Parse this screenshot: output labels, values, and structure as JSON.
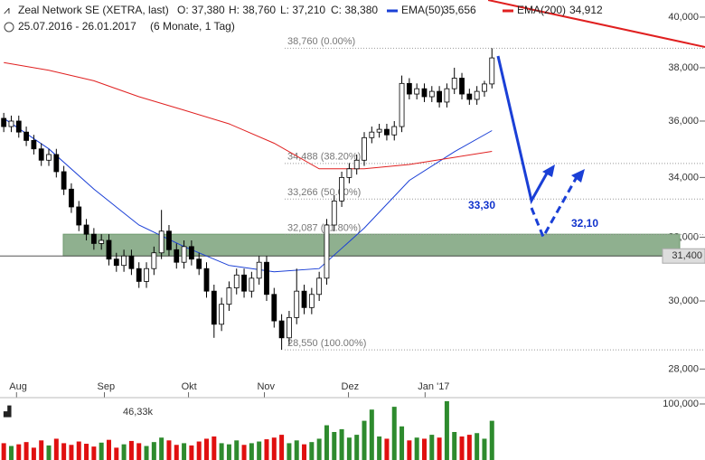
{
  "chart_data": {
    "type": "candlestick",
    "title": "Zeal Network SE (XETRA, last)",
    "header_values": [
      "O: 37,380",
      "H: 38,760",
      "L: 37,210",
      "C: 38,380"
    ],
    "subtitle": "25.07.2016 - 26.01.2017",
    "period": "(6 Monate, 1 Tag)",
    "log_scale": true,
    "xlim": [
      -0.5,
      90
    ],
    "xticks": [
      {
        "value": 1.7,
        "label": "Aug"
      },
      {
        "value": 13.4,
        "label": "Sep"
      },
      {
        "value": 24.6,
        "label": "Okt"
      },
      {
        "value": 34.7,
        "label": "Nov"
      },
      {
        "value": 45.9,
        "label": "Dez"
      },
      {
        "value": 56.1,
        "label": "Jan '17"
      }
    ],
    "ylim": [
      27400,
      40700
    ],
    "yticks": [
      {
        "value": 28000,
        "label": "28,000"
      },
      {
        "value": 30000,
        "label": "30,000"
      },
      {
        "value": 32000,
        "label": "32,000"
      },
      {
        "value": 34000,
        "label": "34,000"
      },
      {
        "value": 36000,
        "label": "36,000"
      },
      {
        "value": 38000,
        "label": "38,000"
      },
      {
        "value": 40000,
        "label": "40,000"
      }
    ],
    "x": [
      0,
      1,
      2,
      3,
      4,
      5,
      6,
      7,
      8,
      9,
      10,
      11,
      12,
      13,
      14,
      15,
      16,
      17,
      18,
      19,
      20,
      21,
      22,
      23,
      24,
      25,
      26,
      27,
      28,
      29,
      30,
      31,
      32,
      33,
      34,
      35,
      36,
      37,
      38,
      39,
      40,
      41,
      42,
      43,
      44,
      45,
      46,
      47,
      48,
      49,
      50,
      51,
      52,
      53,
      54,
      55,
      56,
      57,
      58,
      59,
      60,
      61,
      62,
      63,
      64,
      65
    ],
    "open": [
      36100,
      35800,
      36000,
      35600,
      35300,
      35000,
      34600,
      34800,
      34200,
      33600,
      33000,
      32400,
      32100,
      31800,
      31900,
      31300,
      31100,
      31400,
      31000,
      30600,
      31000,
      31500,
      32200,
      31600,
      31200,
      31700,
      31300,
      31000,
      30300,
      29300,
      29900,
      30400,
      30800,
      30300,
      30700,
      31200,
      30200,
      29400,
      28900,
      29500,
      30300,
      29800,
      30200,
      30700,
      32400,
      33200,
      34000,
      34300,
      34600,
      35400,
      35600,
      35700,
      35500,
      35800,
      37400,
      37000,
      37200,
      36900,
      37100,
      36700,
      37200,
      37600,
      37000,
      36800,
      37100,
      37380
    ],
    "high": [
      36300,
      36200,
      36200,
      35800,
      35500,
      35200,
      35000,
      35000,
      34400,
      33800,
      33200,
      32600,
      32300,
      32100,
      32100,
      31500,
      31600,
      31600,
      31200,
      31200,
      31700,
      32900,
      32400,
      31800,
      31900,
      31900,
      31500,
      31200,
      30500,
      30100,
      30600,
      31000,
      31000,
      30900,
      31400,
      31400,
      30400,
      29600,
      29700,
      31000,
      30500,
      30400,
      30900,
      32600,
      33400,
      34200,
      34500,
      34800,
      35600,
      35800,
      35900,
      35900,
      36000,
      37700,
      37600,
      37400,
      37400,
      37300,
      37300,
      37400,
      38000,
      37800,
      37200,
      37300,
      37500,
      38760
    ],
    "low": [
      35600,
      35600,
      35400,
      35100,
      34800,
      34400,
      34400,
      34000,
      33400,
      32800,
      32200,
      31900,
      31600,
      31600,
      31100,
      30900,
      30900,
      30800,
      30400,
      30400,
      30800,
      31300,
      31400,
      31000,
      31000,
      31100,
      30800,
      30100,
      28900,
      29100,
      29700,
      30200,
      30100,
      30100,
      30500,
      30000,
      29200,
      28550,
      28700,
      29300,
      29600,
      29600,
      30000,
      30500,
      32200,
      33000,
      33800,
      34100,
      34400,
      35200,
      35400,
      35300,
      35300,
      35600,
      36800,
      36800,
      36700,
      36700,
      36500,
      36500,
      37000,
      36800,
      36600,
      36600,
      36900,
      37210
    ],
    "close": [
      35800,
      36000,
      35600,
      35300,
      35000,
      34600,
      34800,
      34200,
      33600,
      33000,
      32400,
      32100,
      31800,
      31900,
      31300,
      31100,
      31400,
      31000,
      30600,
      31000,
      31500,
      32200,
      31600,
      31200,
      31700,
      31300,
      31000,
      30300,
      29300,
      29900,
      30400,
      30800,
      30300,
      30700,
      31200,
      30200,
      29400,
      28900,
      29500,
      30300,
      29800,
      30200,
      30700,
      32400,
      33200,
      34000,
      34300,
      34600,
      35400,
      35600,
      35700,
      35500,
      35800,
      37400,
      37000,
      37200,
      36900,
      37100,
      36700,
      37200,
      37600,
      37000,
      36800,
      37100,
      37380,
      38380
    ],
    "ema": [
      {
        "name": "EMA(50)",
        "color": "#1a3fd6",
        "value_label": "35,656",
        "x": [
          0,
          6,
          12,
          18,
          24,
          30,
          36,
          42,
          48,
          54,
          60,
          65
        ],
        "values": [
          36100,
          35000,
          33600,
          32400,
          31700,
          31100,
          30900,
          31000,
          32300,
          33900,
          34900,
          35656
        ]
      },
      {
        "name": "EMA(200)",
        "color": "#e02020",
        "value_label": "34,912",
        "x": [
          0,
          6,
          12,
          18,
          24,
          30,
          36,
          42,
          48,
          54,
          60,
          65
        ],
        "values": [
          38200,
          37900,
          37500,
          36900,
          36400,
          35900,
          35200,
          34300,
          34300,
          34450,
          34700,
          34912
        ]
      }
    ],
    "fib_levels": [
      {
        "value": 38760,
        "label": "38,760 (0.00%)"
      },
      {
        "value": 34488,
        "label": "34,488 (38.20%)"
      },
      {
        "value": 33266,
        "label": "33,266 (50.00%)"
      },
      {
        "value": 32087,
        "label": "32,087 (61.80%)"
      },
      {
        "value": 28550,
        "label": "28,550 (100.00%)"
      }
    ],
    "zone": [
      31400,
      32100
    ],
    "zone_color": "#8fb08f",
    "price_marker": {
      "value": 31400,
      "label": "31,400"
    },
    "annotations": [
      "33,30",
      "32,10"
    ],
    "volume": {
      "label": "46,33k",
      "up_color": "#2e8b2e",
      "down_color": "#e01010",
      "ylim": [
        0,
        111300
      ],
      "yticks": [
        {
          "value": 100000,
          "label": "100,000"
        }
      ],
      "values": [
        30000,
        25000,
        28000,
        32000,
        22000,
        35000,
        26000,
        38000,
        30000,
        27000,
        33000,
        29000,
        24000,
        31000,
        36000,
        22000,
        28000,
        34000,
        30000,
        25000,
        32000,
        40000,
        35000,
        27000,
        30000,
        26000,
        33000,
        38000,
        42000,
        30000,
        28000,
        35000,
        27000,
        30000,
        33000,
        37000,
        40000,
        45000,
        30000,
        35000,
        28000,
        32000,
        38000,
        62000,
        50000,
        55000,
        40000,
        45000,
        70000,
        90000,
        42000,
        38000,
        95000,
        60000,
        35000,
        40000,
        38000,
        45000,
        40000,
        105000,
        50000,
        42000,
        45000,
        48000,
        38000,
        70000
      ]
    }
  }
}
